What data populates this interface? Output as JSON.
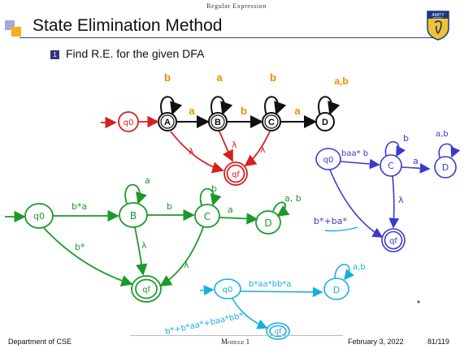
{
  "header": {
    "section": "Regular Expression"
  },
  "slide": {
    "title": "State Elimination Method",
    "item_number": "1",
    "item_text": "Find R.E. for the given DFA"
  },
  "logo": {
    "text": "AMITY",
    "subtext": "UNIVERSITY"
  },
  "dfa": {
    "states": [
      "A",
      "B",
      "C",
      "D"
    ],
    "self_loops": [
      "b",
      "a",
      "b",
      "a,b"
    ],
    "transitions": [
      "a",
      "b",
      "a"
    ]
  },
  "handwriting": {
    "red": {
      "initial": "q0",
      "final": "qf",
      "lambda": "λ"
    },
    "green": {
      "q0": "q0",
      "b": "B",
      "c": "C",
      "d": "D",
      "qf": "qf",
      "e_q0_b": "b*a",
      "loop_b": "a",
      "e_b_c": "b",
      "loop_c": "b",
      "e_c_d": "a",
      "loop_d": "a, b",
      "e_q0_qf": "b*",
      "lam1": "λ",
      "lam2": "λ"
    },
    "blue": {
      "q0": "q0",
      "c": "C",
      "d": "D",
      "qf": "qf",
      "e_q0_c": "baa* b",
      "loop_c": "b",
      "e_c_d": "a",
      "loop_d": "a,b",
      "lam": "λ",
      "e_q0_qf": "b*+ba*"
    },
    "cyan": {
      "q0": "q0",
      "d": "D",
      "qf": "qf",
      "loop_d": "a,b",
      "e_q0_d": "b*aa*bb*a",
      "e_q0_qf": "b*+b*aa*+baa*bb*."
    }
  },
  "footer": {
    "department": "Department of CSE",
    "module": "Module 1",
    "date": "February 3, 2022",
    "page": "81/119"
  },
  "colors": {
    "red": "#d62020",
    "green": "#1a9a2a",
    "blue": "#3a3ad0",
    "cyan": "#1aaee0",
    "orange": "#f08a00",
    "accent": "#34347a"
  }
}
